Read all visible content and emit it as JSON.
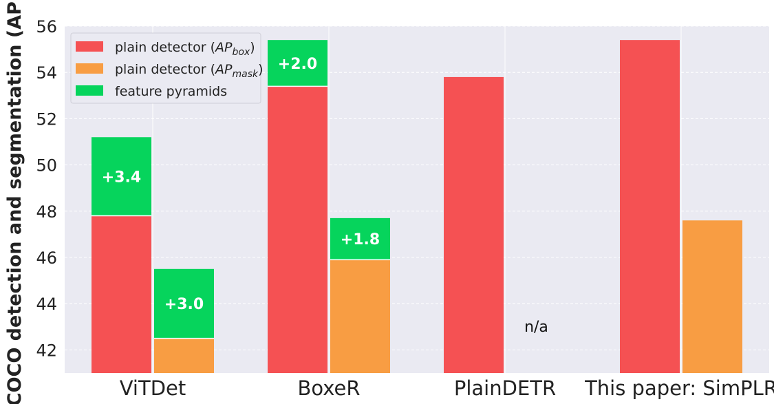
{
  "chart_data": {
    "type": "bar",
    "ylabel": "COCO detection and segmentation (AP)",
    "ylim": [
      41,
      56
    ],
    "yticks": [
      42,
      44,
      46,
      48,
      50,
      52,
      54,
      56
    ],
    "grid": true,
    "legend_position": "top-left",
    "categories": [
      "ViTDet",
      "BoxeR",
      "PlainDETR",
      "This paper: SimPLR"
    ],
    "series": [
      {
        "name": "plain detector (AP_box)",
        "color": "#f55153",
        "values": [
          47.8,
          53.4,
          53.8,
          55.4
        ]
      },
      {
        "name": "plain detector (AP_mask)",
        "color": "#f89d43",
        "values": [
          42.5,
          45.9,
          null,
          47.6
        ]
      },
      {
        "name": "feature pyramids",
        "color": "#06d45c"
      }
    ],
    "pyramid_gains": {
      "box": [
        3.4,
        2.0,
        null,
        null
      ],
      "mask": [
        3.0,
        1.8,
        null,
        null
      ]
    },
    "gain_labels": {
      "box": [
        "+3.4",
        "+2.0",
        null,
        null
      ],
      "mask": [
        "+3.0",
        "+1.8",
        null,
        null
      ]
    },
    "annotations": [
      {
        "category": "PlainDETR",
        "series": "plain detector (AP_mask)",
        "text": "n/a"
      }
    ],
    "legend": [
      {
        "prefix": "plain detector (",
        "sym": "AP",
        "sub": "box",
        "suffix": ")",
        "color": "#f55153"
      },
      {
        "prefix": "plain detector (",
        "sym": "AP",
        "sub": "mask",
        "suffix": ")",
        "color": "#f89d43"
      },
      {
        "prefix": "feature pyramids",
        "sym": "",
        "sub": "",
        "suffix": "",
        "color": "#06d45c"
      }
    ]
  }
}
